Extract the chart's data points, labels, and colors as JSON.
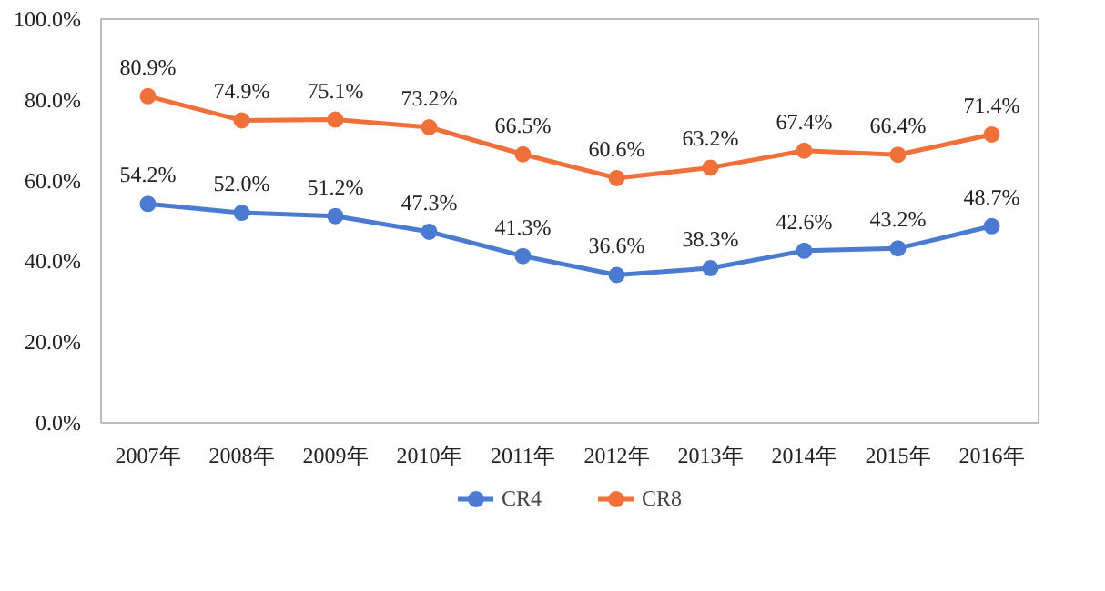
{
  "chart_data": {
    "type": "line",
    "categories": [
      "2007年",
      "2008年",
      "2009年",
      "2010年",
      "2011年",
      "2012年",
      "2013年",
      "2014年",
      "2015年",
      "2016年"
    ],
    "series": [
      {
        "name": "CR4",
        "color": "#4a7bd0",
        "values": [
          54.2,
          52.0,
          51.2,
          47.3,
          41.3,
          36.6,
          38.3,
          42.6,
          43.2,
          48.7
        ],
        "value_labels": [
          "54.2%",
          "52.0%",
          "51.2%",
          "47.3%",
          "41.3%",
          "36.6%",
          "38.3%",
          "42.6%",
          "43.2%",
          "48.7%"
        ]
      },
      {
        "name": "CR8",
        "color": "#f0703a",
        "values": [
          80.9,
          74.9,
          75.1,
          73.2,
          66.5,
          60.6,
          63.2,
          67.4,
          66.4,
          71.4
        ],
        "value_labels": [
          "80.9%",
          "74.9%",
          "75.1%",
          "73.2%",
          "66.5%",
          "60.6%",
          "63.2%",
          "67.4%",
          "66.4%",
          "71.4%"
        ]
      }
    ],
    "ylim": [
      0,
      100
    ],
    "yticks": [
      {
        "value": 0,
        "label": "0.0%"
      },
      {
        "value": 20,
        "label": "20.0%"
      },
      {
        "value": 40,
        "label": "40.0%"
      },
      {
        "value": 60,
        "label": "60.0%"
      },
      {
        "value": 80,
        "label": "80.0%"
      },
      {
        "value": 100,
        "label": "100.0%"
      }
    ],
    "grid": false,
    "legend": "bottom",
    "marker": "circle",
    "line_style": "solid"
  }
}
